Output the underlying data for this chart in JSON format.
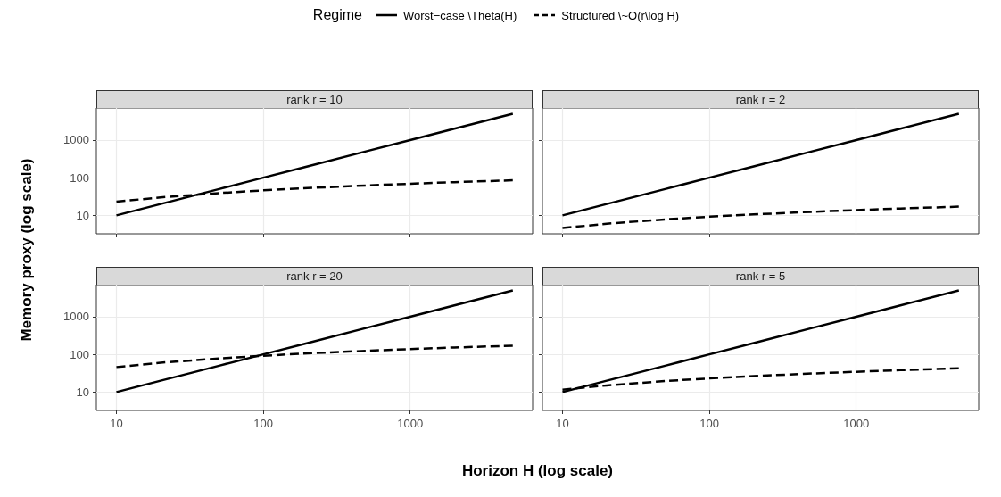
{
  "chart_data": [
    {
      "type": "line",
      "title": "rank r = 10",
      "xlabel": "Horizon  H (log scale)",
      "ylabel": "Memory proxy (log scale)",
      "legend_title": "Regime",
      "legend": "top",
      "log": "xy",
      "grid": true,
      "tick_labels": "y",
      "xlim": [
        7.3,
        6820
      ],
      "ylim": [
        3.24,
        7100
      ],
      "xticks": [
        10,
        100,
        1000
      ],
      "yticks": [
        10,
        100,
        1000
      ],
      "x": [
        10,
        20,
        50,
        100,
        200,
        500,
        1000,
        2000,
        5000
      ],
      "series": [
        {
          "name": "Worst−case \\Theta(H)",
          "color": "#000000",
          "line_style": "solid",
          "values": [
            10,
            20,
            50,
            100,
            200,
            500,
            1000,
            2000,
            5000
          ]
        },
        {
          "name": "Structured \\~O(r\\log H)",
          "color": "#000000",
          "line_style": "dashed",
          "values": [
            23,
            30,
            39,
            46,
            53,
            62,
            69,
            76,
            85
          ]
        }
      ]
    },
    {
      "type": "line",
      "title": "rank r = 2",
      "log": "xy",
      "grid": true,
      "tick_labels": false,
      "xlim": [
        7.3,
        6820
      ],
      "ylim": [
        3.24,
        7100
      ],
      "xticks": [
        10,
        100,
        1000
      ],
      "yticks": [
        10,
        100,
        1000
      ],
      "x": [
        10,
        20,
        50,
        100,
        200,
        500,
        1000,
        2000,
        5000
      ],
      "series": [
        {
          "color": "#000000",
          "line_style": "solid",
          "values": [
            10,
            20,
            50,
            100,
            200,
            500,
            1000,
            2000,
            5000
          ]
        },
        {
          "color": "#000000",
          "line_style": "dashed",
          "values": [
            4.6,
            6,
            7.8,
            9.2,
            10.6,
            12.4,
            13.8,
            15.2,
            17
          ]
        }
      ]
    },
    {
      "type": "line",
      "title": "rank r = 20",
      "log": "xy",
      "grid": true,
      "xlim": [
        7.3,
        6820
      ],
      "ylim": [
        3.24,
        7100
      ],
      "xticks": [
        10,
        100,
        1000
      ],
      "yticks": [
        10,
        100,
        1000
      ],
      "x": [
        10,
        20,
        50,
        100,
        200,
        500,
        1000,
        2000,
        5000
      ],
      "series": [
        {
          "color": "#000000",
          "line_style": "solid",
          "values": [
            10,
            20,
            50,
            100,
            200,
            500,
            1000,
            2000,
            5000
          ]
        },
        {
          "color": "#000000",
          "line_style": "dashed",
          "values": [
            46,
            60,
            78,
            92,
            106,
            124,
            138,
            152,
            170
          ]
        }
      ]
    },
    {
      "type": "line",
      "title": "rank r = 5",
      "log": "xy",
      "grid": true,
      "tick_labels": "x",
      "xlim": [
        7.3,
        6820
      ],
      "ylim": [
        3.24,
        7100
      ],
      "xticks": [
        10,
        100,
        1000
      ],
      "yticks": [
        10,
        100,
        1000
      ],
      "x": [
        10,
        20,
        50,
        100,
        200,
        500,
        1000,
        2000,
        5000
      ],
      "series": [
        {
          "color": "#000000",
          "line_style": "solid",
          "values": [
            10,
            20,
            50,
            100,
            200,
            500,
            1000,
            2000,
            5000
          ]
        },
        {
          "color": "#000000",
          "line_style": "dashed",
          "values": [
            11.5,
            15,
            19.6,
            23,
            26.5,
            31,
            34.5,
            38,
            42.6
          ]
        }
      ]
    }
  ]
}
